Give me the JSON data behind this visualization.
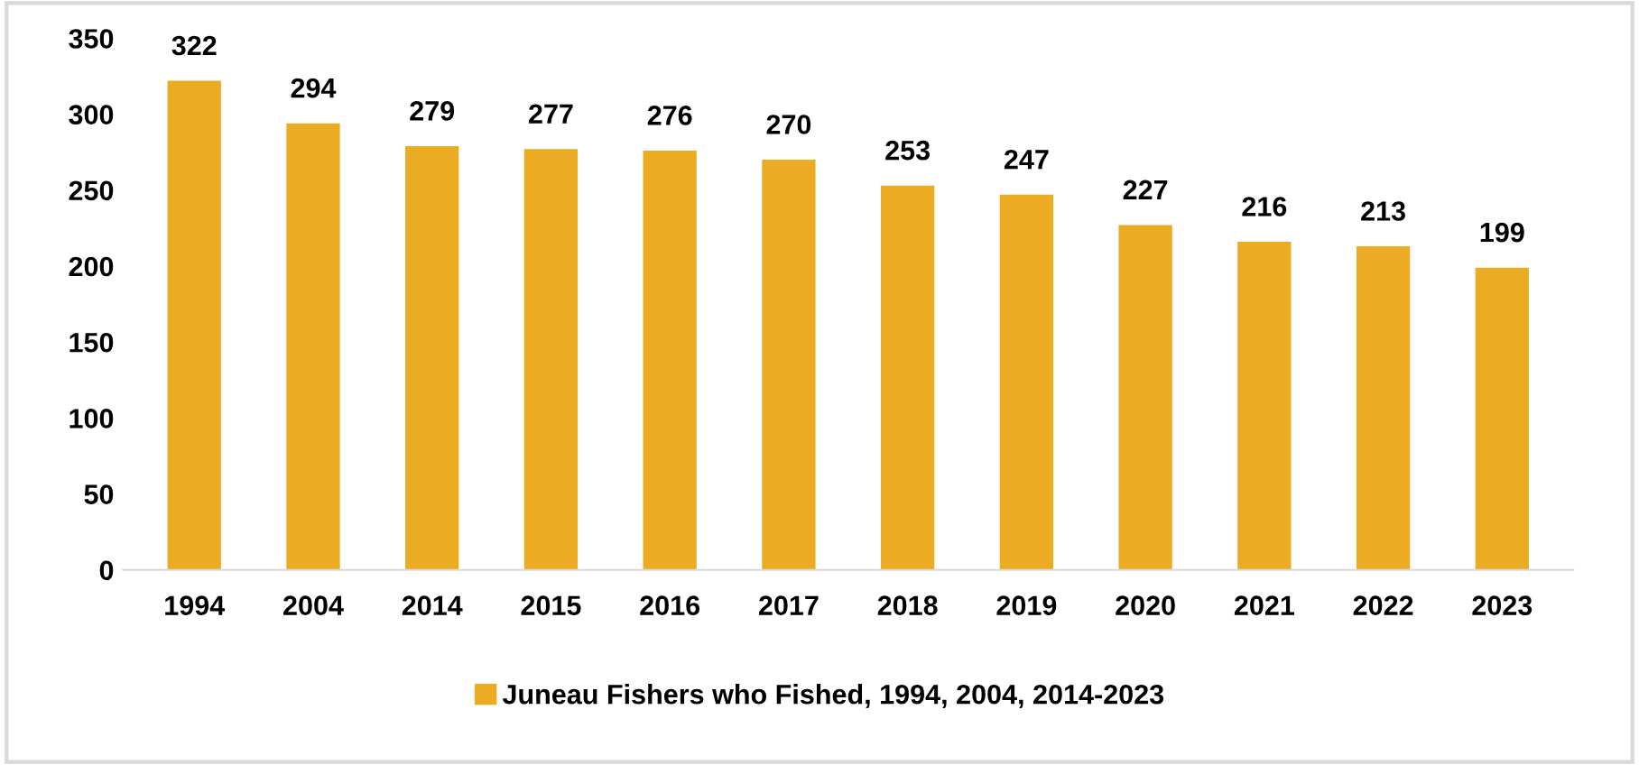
{
  "chart_data": {
    "type": "bar",
    "categories": [
      "1994",
      "2004",
      "2014",
      "2015",
      "2016",
      "2017",
      "2018",
      "2019",
      "2020",
      "2021",
      "2022",
      "2023"
    ],
    "series": [
      {
        "name": "Juneau Fishers who Fished, 1994, 2004, 2014-2023",
        "color": "#ebab23",
        "values": [
          322,
          294,
          279,
          277,
          276,
          270,
          253,
          247,
          227,
          216,
          213,
          199
        ]
      }
    ],
    "ylim": [
      0,
      350
    ],
    "yticks": [
      0,
      50,
      100,
      150,
      200,
      250,
      300,
      350
    ],
    "data_labels": true,
    "legend": "bottom",
    "grid": false
  }
}
